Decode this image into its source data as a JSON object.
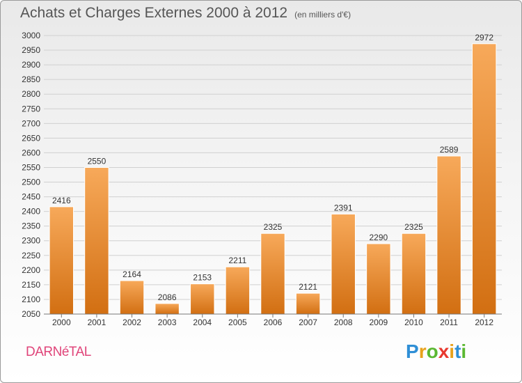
{
  "header": {
    "title": "Achats et Charges Externes 2000 à 2012",
    "unit": "(en milliers d'€)"
  },
  "footer": {
    "commune": "DARNéTAL",
    "brand_letters": [
      "P",
      "r",
      "o",
      "x",
      "i",
      "t",
      "i"
    ],
    "brand_colors": [
      "#2f8fd6",
      "#e8a21c",
      "#5bb832",
      "#e8392f",
      "#e8a21c",
      "#2f8fd6",
      "#5bb832"
    ]
  },
  "chart_data": {
    "type": "bar",
    "categories": [
      "2000",
      "2001",
      "2002",
      "2003",
      "2004",
      "2005",
      "2006",
      "2007",
      "2008",
      "2009",
      "2010",
      "2011",
      "2012"
    ],
    "values": [
      2416,
      2550,
      2164,
      2086,
      2153,
      2211,
      2325,
      2121,
      2391,
      2290,
      2325,
      2589,
      2972
    ],
    "ylim": [
      2050,
      3000
    ],
    "ytick_step": 50,
    "grid": true,
    "bar_color_top": "#f7a95a",
    "bar_color_bottom": "#d26f12"
  }
}
